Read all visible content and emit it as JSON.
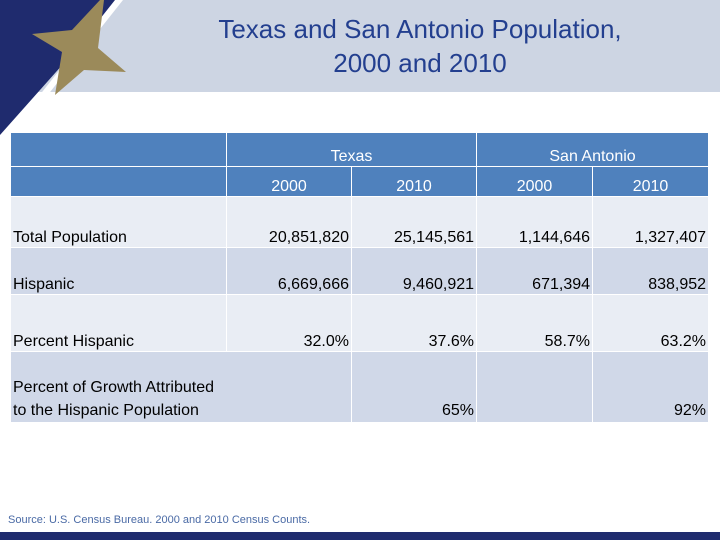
{
  "title": {
    "line1": "Texas and San Antonio Population,",
    "line2": "2000 and 2010"
  },
  "table": {
    "groups": [
      "Texas",
      "San Antonio"
    ],
    "years": [
      "2000",
      "2010",
      "2000",
      "2010"
    ],
    "rows": [
      {
        "label": "Total Population",
        "values": [
          "20,851,820",
          "25,145,561",
          "1,144,646",
          "1,327,407"
        ]
      },
      {
        "label": "Hispanic",
        "values": [
          "6,669,666",
          "9,460,921",
          "671,394",
          "838,952"
        ]
      },
      {
        "label": "Percent Hispanic",
        "values": [
          "32.0%",
          "37.6%",
          "58.7%",
          "63.2%"
        ]
      },
      {
        "label_line1": "Percent of Growth Attributed",
        "label_line2": "to the Hispanic Population",
        "texas": "65%",
        "san_antonio": "92%"
      }
    ]
  },
  "source": "Source: U.S. Census Bureau. 2000 and 2010 Census Counts.",
  "colors": {
    "header": "#4f81bd",
    "row_light": "#e9edf4",
    "row_dark": "#d0d8e8",
    "title": "#233f8f",
    "navy": "#1f2b6e",
    "gold": "#9b8a5a"
  }
}
